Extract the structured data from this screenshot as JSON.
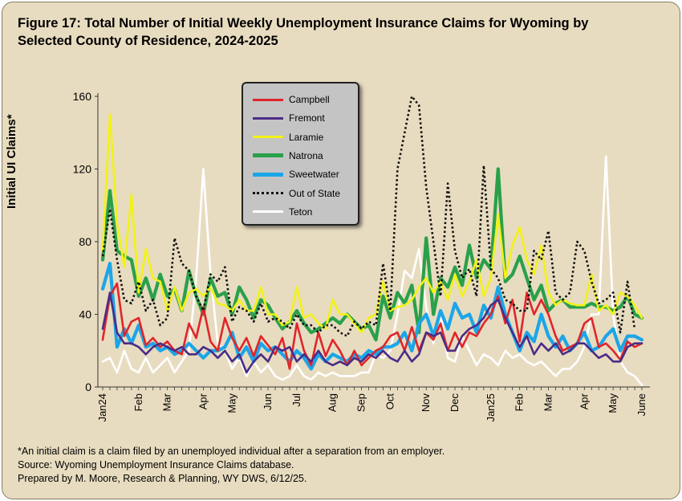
{
  "title_line1": "Figure 17: Total Number of Initial Weekly Unemployment Insurance Claims for Wyoming by",
  "title_line2": "Selected County of Residence, 2024-2025",
  "footnotes": [
    "*An initial claim is a claim filed by an unemployed individual after a separation from an employer.",
    "Source: Wyoming Unemployment Insurance Claims database.",
    "Prepared by M. Moore, Research & Planning, WY DWS, 6/12/25."
  ],
  "colors": {
    "background": "#e8dcc0",
    "legend_bg": "#c4c4c4"
  },
  "chart_data": {
    "type": "line",
    "ylabel": "Initial UI Claims*",
    "ylim": [
      0,
      160
    ],
    "yticks": [
      0,
      40,
      80,
      120,
      160
    ],
    "x_tick_labels": [
      "Jan24",
      "Feb",
      "Mar",
      "Apr",
      "May",
      "Jun",
      "Jul",
      "Aug",
      "Sep",
      "Oct",
      "Nov",
      "Dec",
      "Jan25",
      "Feb",
      "Mar",
      "Apr",
      "May",
      "June"
    ],
    "x_tick_week_index": [
      0,
      5,
      9,
      14,
      18,
      23,
      27,
      32,
      36,
      40,
      45,
      49,
      54,
      58,
      62,
      67,
      71,
      75
    ],
    "legend_position": "upper-center",
    "grid": false,
    "series": [
      {
        "name": "Campbell",
        "color": "#e0252b",
        "style": "solid",
        "values": [
          26,
          50,
          57,
          28,
          36,
          38,
          23,
          27,
          22,
          25,
          20,
          18,
          35,
          27,
          44,
          25,
          20,
          38,
          27,
          20,
          27,
          17,
          28,
          23,
          18,
          27,
          10,
          35,
          20,
          12,
          30,
          17,
          26,
          20,
          12,
          20,
          12,
          16,
          20,
          22,
          28,
          30,
          20,
          33,
          20,
          30,
          26,
          35,
          20,
          30,
          22,
          30,
          28,
          35,
          40,
          50,
          35,
          48,
          25,
          52,
          40,
          48,
          40,
          28,
          20,
          22,
          24,
          35,
          38,
          22,
          24,
          20,
          15,
          25,
          22,
          24
        ]
      },
      {
        "name": "Fremont",
        "color": "#4b2c87",
        "style": "solid",
        "values": [
          32,
          52,
          30,
          24,
          24,
          22,
          18,
          22,
          24,
          22,
          20,
          22,
          18,
          18,
          22,
          20,
          16,
          20,
          14,
          18,
          8,
          14,
          18,
          14,
          22,
          20,
          22,
          14,
          18,
          14,
          20,
          14,
          12,
          14,
          12,
          16,
          14,
          18,
          16,
          20,
          16,
          14,
          20,
          14,
          18,
          30,
          28,
          30,
          20,
          20,
          28,
          32,
          34,
          38,
          45,
          48,
          38,
          30,
          22,
          28,
          18,
          24,
          20,
          24,
          18,
          20,
          24,
          24,
          20,
          16,
          18,
          14,
          14,
          22,
          24,
          24
        ]
      },
      {
        "name": "Laramie",
        "color": "#f2f217",
        "style": "solid",
        "values": [
          75,
          150,
          90,
          66,
          106,
          52,
          76,
          60,
          58,
          42,
          55,
          42,
          52,
          54,
          50,
          55,
          46,
          45,
          42,
          48,
          42,
          42,
          55,
          40,
          40,
          34,
          36,
          55,
          38,
          40,
          35,
          32,
          48,
          40,
          40,
          35,
          30,
          38,
          40,
          58,
          42,
          44,
          45,
          48,
          55,
          60,
          52,
          58,
          48,
          62,
          50,
          58,
          70,
          50,
          60,
          95,
          60,
          78,
          88,
          70,
          62,
          78,
          52,
          45,
          48,
          46,
          45,
          45,
          62,
          42,
          45,
          40,
          52,
          50,
          45,
          38
        ]
      },
      {
        "name": "Natrona",
        "color": "#2aa04a",
        "style": "solid",
        "values": [
          70,
          108,
          75,
          72,
          70,
          50,
          60,
          48,
          62,
          50,
          54,
          42,
          64,
          50,
          40,
          60,
          50,
          52,
          40,
          55,
          48,
          38,
          48,
          45,
          38,
          32,
          36,
          42,
          35,
          30,
          32,
          35,
          38,
          35,
          40,
          36,
          32,
          34,
          26,
          50,
          38,
          52,
          46,
          56,
          30,
          82,
          40,
          60,
          55,
          66,
          56,
          78,
          60,
          70,
          65,
          120,
          58,
          62,
          72,
          60,
          48,
          56,
          42,
          46,
          48,
          44,
          44,
          44,
          46,
          44,
          44,
          42,
          44,
          50,
          40,
          38
        ]
      },
      {
        "name": "Sweetwater",
        "color": "#1ba6e8",
        "style": "solid",
        "values": [
          54,
          68,
          22,
          32,
          24,
          34,
          22,
          24,
          20,
          22,
          18,
          20,
          24,
          20,
          16,
          20,
          20,
          22,
          30,
          16,
          22,
          14,
          24,
          20,
          22,
          18,
          14,
          20,
          16,
          10,
          18,
          14,
          18,
          16,
          14,
          18,
          16,
          20,
          18,
          22,
          22,
          24,
          30,
          20,
          35,
          40,
          28,
          42,
          32,
          46,
          38,
          40,
          30,
          45,
          38,
          55,
          40,
          30,
          20,
          30,
          25,
          40,
          28,
          22,
          28,
          20,
          24,
          30,
          20,
          22,
          28,
          32,
          20,
          28,
          28,
          26
        ]
      },
      {
        "name": "Out of State",
        "color": "#111111",
        "style": "dotted",
        "values": [
          72,
          98,
          70,
          48,
          46,
          58,
          42,
          48,
          34,
          38,
          82,
          68,
          64,
          50,
          42,
          62,
          58,
          66,
          36,
          44,
          42,
          36,
          46,
          36,
          38,
          36,
          32,
          40,
          34,
          34,
          30,
          34,
          34,
          30,
          28,
          36,
          32,
          36,
          34,
          68,
          42,
          120,
          140,
          160,
          155,
          110,
          80,
          50,
          112,
          75,
          60,
          65,
          50,
          122,
          65,
          60,
          48,
          46,
          42,
          42,
          75,
          70,
          86,
          52,
          48,
          52,
          80,
          75,
          58,
          46,
          48,
          52,
          30,
          58,
          32
        ]
      },
      {
        "name": "Teton",
        "color": "#ffffff",
        "style": "solid",
        "values": [
          14,
          16,
          8,
          20,
          10,
          8,
          16,
          8,
          12,
          16,
          8,
          14,
          20,
          60,
          120,
          62,
          24,
          20,
          10,
          16,
          6,
          14,
          8,
          12,
          6,
          4,
          6,
          12,
          6,
          4,
          8,
          6,
          8,
          6,
          6,
          6,
          8,
          8,
          18,
          16,
          20,
          40,
          64,
          60,
          76,
          44,
          24,
          40,
          16,
          14,
          28,
          20,
          12,
          18,
          16,
          12,
          20,
          16,
          18,
          14,
          12,
          14,
          10,
          6,
          10,
          10,
          14,
          22,
          40,
          40,
          127,
          40,
          14,
          8,
          6,
          1
        ]
      }
    ]
  }
}
